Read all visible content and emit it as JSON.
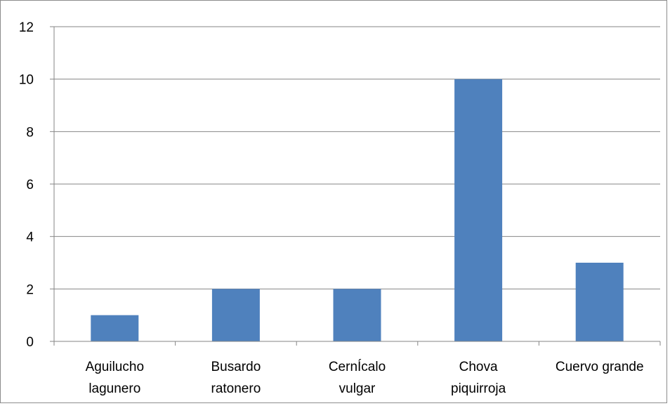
{
  "chart_data": {
    "type": "bar",
    "categories": [
      [
        "Aguilucho",
        "lagunero"
      ],
      [
        "Busardo",
        "ratonero"
      ],
      [
        "CernÍcalo",
        "vulgar"
      ],
      [
        "Chova",
        "piquirroja"
      ],
      [
        "Cuervo grande"
      ]
    ],
    "values": [
      1,
      2,
      2,
      10,
      3
    ],
    "ylim": [
      0,
      12
    ],
    "yticks": [
      0,
      2,
      4,
      6,
      8,
      10,
      12
    ],
    "grid": true,
    "legend": "none",
    "bar_color": "#4f81bd",
    "grid_color": "#868686"
  }
}
